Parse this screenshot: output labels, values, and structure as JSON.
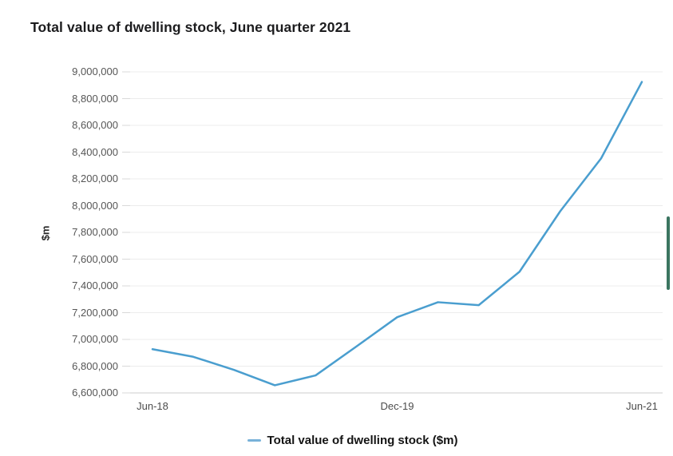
{
  "title": "Total value of dwelling stock, June quarter 2021",
  "colors": {
    "accent_line": "#4a9ecf",
    "legend_dash": "#78b2d9",
    "gridline": "#ececec",
    "axis_line": "#cccccc",
    "tick_mark": "#d9d9d9",
    "scrollbar_green": "#3b7560"
  },
  "scrollbar": {
    "visible": true
  },
  "chart_data": {
    "type": "line",
    "title": "Total value of dwelling stock, June quarter 2021",
    "ylabel": "$m",
    "xlabel": "",
    "legend": "Total value of dwelling stock ($m)",
    "legend_position": "bottom-center",
    "grid": true,
    "categories": [
      "Jun-18",
      "Sep-18",
      "Dec-18",
      "Mar-19",
      "Jun-19",
      "Sep-19",
      "Dec-19",
      "Mar-20",
      "Jun-20",
      "Sep-20",
      "Dec-20",
      "Mar-21",
      "Jun-21"
    ],
    "values": [
      6927000,
      6870000,
      6772000,
      6657000,
      6731000,
      6947000,
      7166000,
      7278000,
      7256000,
      7506000,
      7959000,
      8353000,
      8925000
    ],
    "ylim": [
      6600000,
      9000000
    ],
    "y_step": 200000,
    "y_tick_labels": [
      "9,000,000",
      "8,800,000",
      "8,600,000",
      "8,400,000",
      "8,200,000",
      "8,000,000",
      "7,800,000",
      "7,600,000",
      "7,400,000",
      "7,200,000",
      "7,000,000",
      "6,800,000",
      "6,600,000"
    ],
    "x_ticks": [
      {
        "label": "Jun-18",
        "index": 0
      },
      {
        "label": "Dec-19",
        "index": 6
      },
      {
        "label": "Jun-21",
        "index": 12
      }
    ]
  }
}
